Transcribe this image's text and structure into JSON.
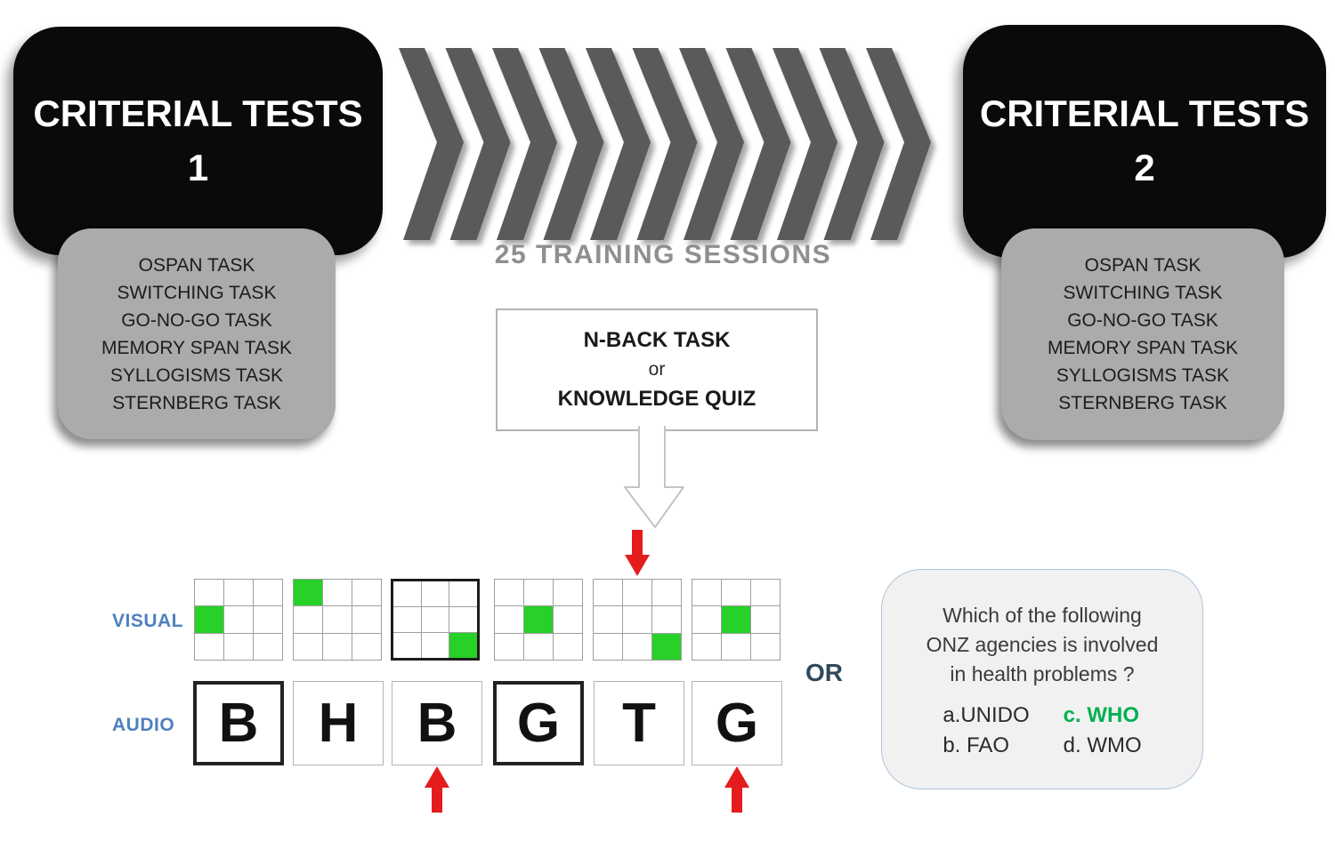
{
  "pretest": {
    "title": "CRITERIAL TESTS",
    "number": "1",
    "tasks": [
      "OSPAN TASK",
      "SWITCHING TASK",
      "GO-NO-GO TASK",
      "MEMORY SPAN TASK",
      "SYLLOGISMS TASK",
      "STERNBERG TASK"
    ]
  },
  "posttest": {
    "title": "CRITERIAL TESTS",
    "number": "2",
    "tasks": [
      "OSPAN TASK",
      "SWITCHING TASK",
      "GO-NO-GO TASK",
      "MEMORY SPAN TASK",
      "SYLLOGISMS TASK",
      "STERNBERG TASK"
    ]
  },
  "training": {
    "label": "25 TRAINING SESSIONS",
    "chevron_count": 11
  },
  "task_choice": {
    "option1": "N-BACK TASK",
    "connector": "or",
    "option2": "KNOWLEDGE QUIZ"
  },
  "nback_demo": {
    "visual_label": "VISUAL",
    "audio_label": "AUDIO",
    "visual_grids": [
      {
        "green_row": 1,
        "green_col": 0,
        "bold_border": false,
        "marker_arrow": false
      },
      {
        "green_row": 0,
        "green_col": 0,
        "bold_border": false,
        "marker_arrow": false
      },
      {
        "green_row": 2,
        "green_col": 2,
        "bold_border": true,
        "marker_arrow": false
      },
      {
        "green_row": 1,
        "green_col": 1,
        "bold_border": false,
        "marker_arrow": false
      },
      {
        "green_row": 2,
        "green_col": 2,
        "bold_border": false,
        "marker_arrow": true
      },
      {
        "green_row": 1,
        "green_col": 1,
        "bold_border": false,
        "marker_arrow": false
      }
    ],
    "audio_letters": [
      {
        "letter": "B",
        "bold_border": true,
        "marker_arrow": false
      },
      {
        "letter": "H",
        "bold_border": false,
        "marker_arrow": false
      },
      {
        "letter": "B",
        "bold_border": false,
        "marker_arrow": true
      },
      {
        "letter": "G",
        "bold_border": true,
        "marker_arrow": false
      },
      {
        "letter": "T",
        "bold_border": false,
        "marker_arrow": false
      },
      {
        "letter": "G",
        "bold_border": false,
        "marker_arrow": true
      }
    ]
  },
  "or_label": "OR",
  "quiz_demo": {
    "question_lines": [
      "Which of the following",
      "ONZ agencies is involved",
      "in health problems ?"
    ],
    "answers": [
      {
        "label": "a.UNIDO",
        "correct": false
      },
      {
        "label": "b. FAO",
        "correct": false
      },
      {
        "label": "c. WHO",
        "correct": true
      },
      {
        "label": "d. WMO",
        "correct": false
      }
    ]
  },
  "icons": {
    "training_arrows": "chevron-right-stripes",
    "flow_arrow": "white-down-arrow",
    "match_marker": "red-arrow"
  },
  "colors": {
    "green_cell": "#27d127",
    "marker_red": "#e51c1c",
    "label_blue": "#4f81bd",
    "correct_green": "#00b050",
    "chevron_gray": "#5a5a5a",
    "or_navy": "#30495c"
  }
}
